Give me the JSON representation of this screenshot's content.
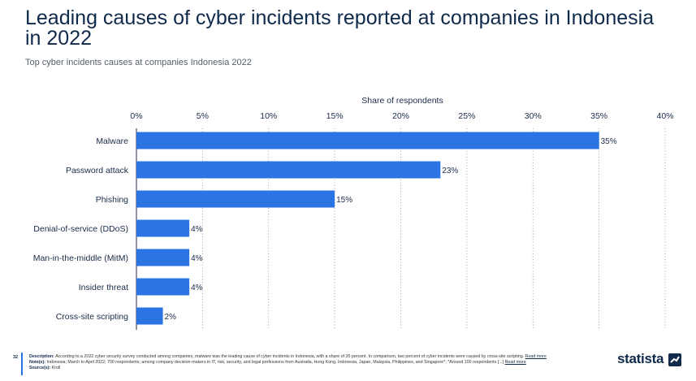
{
  "header": {
    "title": "Leading causes of cyber incidents reported at companies in Indonesia in 2022",
    "subtitle": "Top cyber incidents causes at companies Indonesia 2022"
  },
  "chart_data": {
    "type": "bar",
    "orientation": "horizontal",
    "xlabel": "Share of respondents",
    "xlim": [
      0,
      40
    ],
    "ticks": [
      0,
      5,
      10,
      15,
      20,
      25,
      30,
      35,
      40
    ],
    "tick_labels": [
      "0%",
      "5%",
      "10%",
      "15%",
      "20%",
      "25%",
      "30%",
      "35%",
      "40%"
    ],
    "axis_position": "top",
    "grid": true,
    "categories": [
      "Malware",
      "Password attack",
      "Phishing",
      "Denial-of-service (DDoS)",
      "Man-in-the-middle (MitM)",
      "Insider threat",
      "Cross-site scripting"
    ],
    "values": [
      35,
      23,
      15,
      4,
      4,
      4,
      2
    ],
    "value_labels": [
      "35%",
      "23%",
      "15%",
      "4%",
      "4%",
      "4%",
      "2%"
    ],
    "bar_color": "#2b74e4"
  },
  "footer": {
    "page_number": "32",
    "description_label": "Description:",
    "description": "According to a 2022 cyber security survey conducted among companies, malware was the leading cause of cyber incidents in Indonesia, with a share of 35 percent. In comparison, two percent of cyber incidents were caused by cross-site scripting.",
    "read_more_1": "Read more",
    "notes_label": "Note(s):",
    "notes": "Indonesia; March to April 2022; 700 respondents; among company decision-makers in IT, risk, security, and legal professions from Australia, Hong Kong, Indonesia, Japan, Malaysia, Philippines, and Singapore*; *Around 100 respondents [...]",
    "read_more_2": "Read more",
    "source_label": "Source(s):",
    "source": "Kroll",
    "brand": "statista",
    "brand_icon": "statista-logo-icon",
    "accent_color": "#2b74e4"
  }
}
